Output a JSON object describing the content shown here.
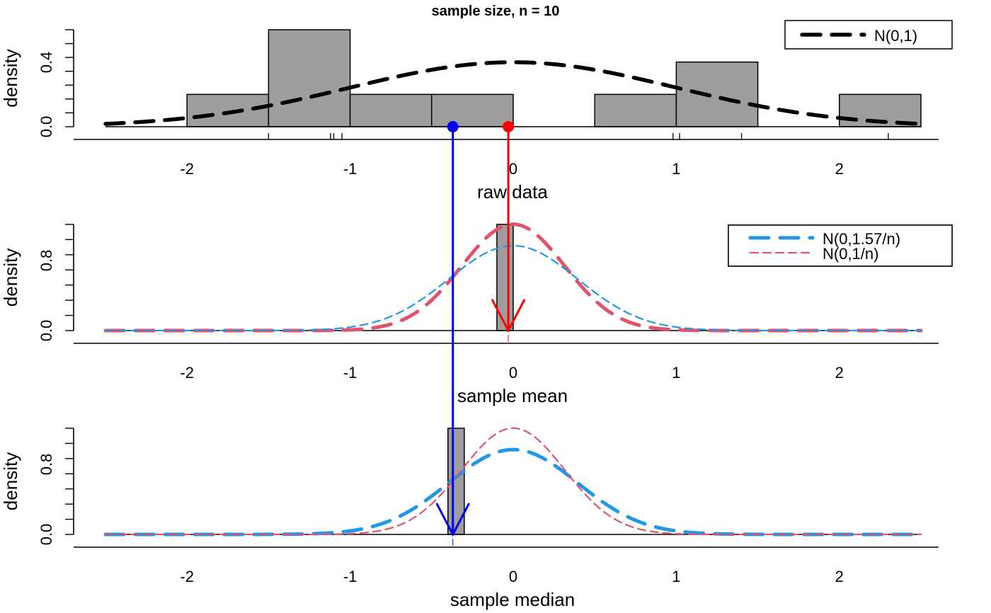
{
  "colors": {
    "hist_fill": "#9e9e9e",
    "normal": "#000000",
    "mean_curve": "#df536b",
    "median_curve": "#2297e6",
    "mean_arrow": "#ff0000",
    "median_arrow": "#0000ee"
  },
  "chart_data": [
    {
      "type": "histogram",
      "title": "sample size, n =  10",
      "xlabel": "raw data",
      "ylabel": "density",
      "xlim": [
        -2.5,
        2.5
      ],
      "ylim": [
        0,
        0.6
      ],
      "x_ticks": [
        "-2",
        "-1",
        "0",
        "1",
        "2"
      ],
      "y_ticks": [
        "0.0",
        "0.4"
      ],
      "bins": [
        {
          "from": -2.0,
          "to": -1.5,
          "density": 0.2
        },
        {
          "from": -1.5,
          "to": -1.0,
          "density": 0.6
        },
        {
          "from": -1.0,
          "to": -0.5,
          "density": 0.2
        },
        {
          "from": -0.5,
          "to": 0.0,
          "density": 0.2
        },
        {
          "from": 0.0,
          "to": 0.5,
          "density": 0.0
        },
        {
          "from": 0.5,
          "to": 1.0,
          "density": 0.2
        },
        {
          "from": 1.0,
          "to": 1.5,
          "density": 0.4
        },
        {
          "from": 1.5,
          "to": 2.0,
          "density": 0.0
        },
        {
          "from": 2.0,
          "to": 2.5,
          "density": 0.2
        }
      ],
      "rug": [
        -1.5,
        -1.12,
        -1.1,
        -1.05,
        0.98,
        1.02,
        1.4,
        2.3
      ],
      "series": [
        {
          "name": "N(0,1)",
          "mean": 0,
          "variance": 1,
          "style": "dashed"
        }
      ],
      "legend": {
        "position": "top-right",
        "entries": [
          "N(0,1)"
        ]
      },
      "markers": [
        {
          "kind": "median",
          "x": -0.37
        },
        {
          "kind": "mean",
          "x": -0.03
        }
      ]
    },
    {
      "type": "histogram",
      "xlabel": "sample mean",
      "ylabel": "density",
      "xlim": [
        -2.5,
        2.5
      ],
      "ylim": [
        0,
        1.26
      ],
      "x_ticks": [
        "-2",
        "-1",
        "0",
        "1",
        "2"
      ],
      "y_ticks": [
        "0.0",
        "0.8"
      ],
      "bins": [
        {
          "from": -0.1,
          "to": 0.0,
          "density": 1.26
        }
      ],
      "series": [
        {
          "name": "N(0,1/n)",
          "mean": 0,
          "variance": 0.1,
          "style": "thick-dashed"
        },
        {
          "name": "N(0,1.57/n)",
          "mean": 0,
          "variance": 0.157,
          "style": "thin-dashed"
        }
      ],
      "legend": {
        "position": "top-right",
        "entries": [
          "N(0,1/n)",
          "N(0,1.57/n)"
        ]
      },
      "arrow": {
        "kind": "mean",
        "x": -0.03
      }
    },
    {
      "type": "histogram",
      "xlabel": "sample median",
      "ylabel": "density",
      "xlim": [
        -2.5,
        2.5
      ],
      "ylim": [
        0,
        1.26
      ],
      "x_ticks": [
        "-2",
        "-1",
        "0",
        "1",
        "2"
      ],
      "y_ticks": [
        "0.0",
        "0.8"
      ],
      "bins": [
        {
          "from": -0.4,
          "to": -0.3,
          "density": 1.26
        }
      ],
      "series": [
        {
          "name": "N(0,1.57/n)",
          "mean": 0,
          "variance": 0.157,
          "style": "thick-dashed"
        },
        {
          "name": "N(0,1/n)",
          "mean": 0,
          "variance": 0.1,
          "style": "thin-dashed"
        }
      ],
      "legend": {
        "position": "top-right",
        "entries": [
          "N(0,1.57/n)",
          "N(0,1/n)"
        ]
      },
      "arrow": {
        "kind": "median",
        "x": -0.37
      }
    }
  ]
}
